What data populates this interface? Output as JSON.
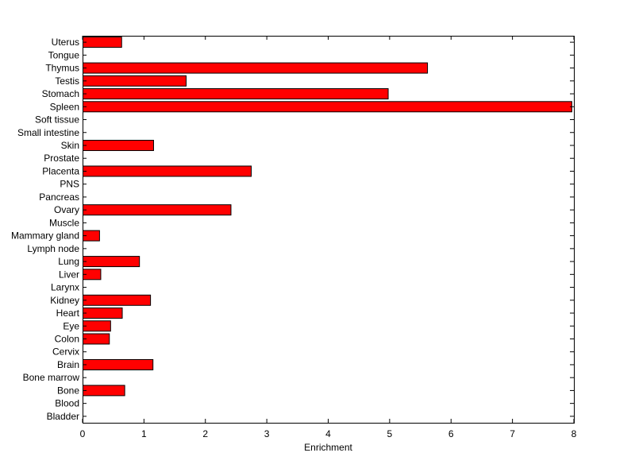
{
  "chart_data": {
    "type": "bar",
    "orientation": "horizontal",
    "xlabel": "Enrichment",
    "ylabel": "",
    "title": "",
    "xlim": [
      0,
      8
    ],
    "xticks": [
      "0",
      "1",
      "2",
      "3",
      "4",
      "5",
      "6",
      "7",
      "8"
    ],
    "grid": false,
    "legend": "none",
    "bar_color": "#ff0000",
    "edge_color": "#000000",
    "categories": [
      "Uterus",
      "Tongue",
      "Thymus",
      "Testis",
      "Stomach",
      "Spleen",
      "Soft tissue",
      "Small intestine",
      "Skin",
      "Prostate",
      "Placenta",
      "PNS",
      "Pancreas",
      "Ovary",
      "Muscle",
      "Mammary gland",
      "Lymph node",
      "Lung",
      "Liver",
      "Larynx",
      "Kidney",
      "Heart",
      "Eye",
      "Colon",
      "Cervix",
      "Brain",
      "Bone marrow",
      "Bone",
      "Blood",
      "Bladder"
    ],
    "values": [
      0.63,
      0,
      5.61,
      1.68,
      4.97,
      7.96,
      0,
      0,
      1.15,
      0,
      2.74,
      0,
      0,
      2.41,
      0,
      0.27,
      0,
      0.92,
      0.29,
      0,
      1.1,
      0.64,
      0.45,
      0.43,
      0,
      1.14,
      0,
      0.68,
      0,
      0
    ]
  }
}
